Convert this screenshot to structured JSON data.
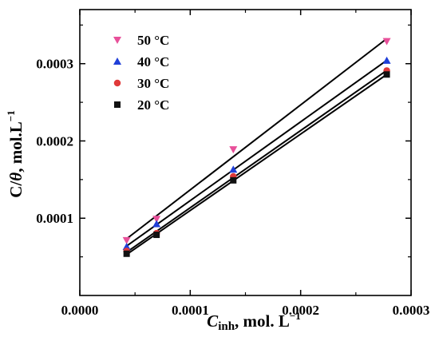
{
  "chart_data": {
    "type": "scatter",
    "xlim": [
      0,
      0.0003
    ],
    "ylim": [
      0,
      0.00037
    ],
    "x_ticks": [
      "0.0000",
      "0.0001",
      "0.0002",
      "0.0003"
    ],
    "y_ticks": [
      "0.0001",
      "0.0002",
      "0.0003"
    ],
    "x_tick_values": [
      0,
      0.0001,
      0.0002,
      0.0003
    ],
    "y_tick_values": [
      0.0001,
      0.0002,
      0.0003
    ],
    "xlabel": {
      "main": "C",
      "sub": "inh",
      "rest": ", mol. L",
      "sup": "−1"
    },
    "ylabel": {
      "main": "C/",
      "theta": "θ",
      "rest": ", mol.L",
      "sup": "−1"
    },
    "legend_position": "top-left",
    "grid": false,
    "fit_lines": true,
    "x": [
      4.24e-05,
      6.95e-05,
      0.000139,
      0.000278
    ],
    "series": [
      {
        "name": "50 °C",
        "marker": "triangle-down",
        "color": "#e8509a",
        "values": [
          7.15e-05,
          9.9e-05,
          0.000189,
          0.000329
        ]
      },
      {
        "name": "40 °C",
        "marker": "triangle-up",
        "color": "#1f3fd8",
        "values": [
          6.3e-05,
          9.25e-05,
          0.000163,
          0.000304
        ]
      },
      {
        "name": "30 °C",
        "marker": "circle",
        "color": "#e03a3a",
        "values": [
          5.75e-05,
          8.05e-05,
          0.000154,
          0.000291
        ]
      },
      {
        "name": "20 °C",
        "marker": "square",
        "color": "#111111",
        "values": [
          5.4e-05,
          7.85e-05,
          0.000149,
          0.000286
        ]
      }
    ]
  }
}
